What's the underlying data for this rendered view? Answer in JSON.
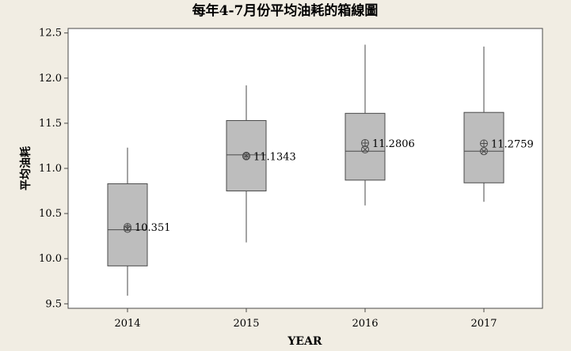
{
  "chart_data": {
    "type": "box",
    "title": "每年4-7月份平均油耗的箱線圖",
    "xlabel": "YEAR",
    "ylabel": "平均油耗",
    "categories": [
      "2014",
      "2015",
      "2016",
      "2017"
    ],
    "ylim": [
      9.45,
      12.55
    ],
    "yticks": [
      "9.5",
      "10.0",
      "10.5",
      "11.0",
      "11.5",
      "12.0",
      "12.5"
    ],
    "grid": false,
    "boxes": [
      {
        "category": "2014",
        "min": 9.59,
        "q1": 9.92,
        "median": 10.32,
        "q3": 10.83,
        "max": 11.23,
        "mean": 10.351,
        "mean_label": "10.351",
        "ci_mean": 10.33
      },
      {
        "category": "2015",
        "min": 10.18,
        "q1": 10.75,
        "median": 11.15,
        "q3": 11.53,
        "max": 11.92,
        "mean": 11.1343,
        "mean_label": "11.1343",
        "ci_mean": 11.14
      },
      {
        "category": "2016",
        "min": 10.59,
        "q1": 10.87,
        "median": 11.19,
        "q3": 11.61,
        "max": 12.37,
        "mean": 11.2806,
        "mean_label": "11.2806",
        "ci_mean": 11.21
      },
      {
        "category": "2017",
        "min": 10.63,
        "q1": 10.84,
        "median": 11.19,
        "q3": 11.62,
        "max": 12.35,
        "mean": 11.2759,
        "mean_label": "11.2759",
        "ci_mean": 11.19
      }
    ],
    "colors": {
      "background": "#f1ede3",
      "plot_area": "#ffffff",
      "box_fill": "#bdbdbd",
      "stroke": "#4a4a4a"
    }
  }
}
